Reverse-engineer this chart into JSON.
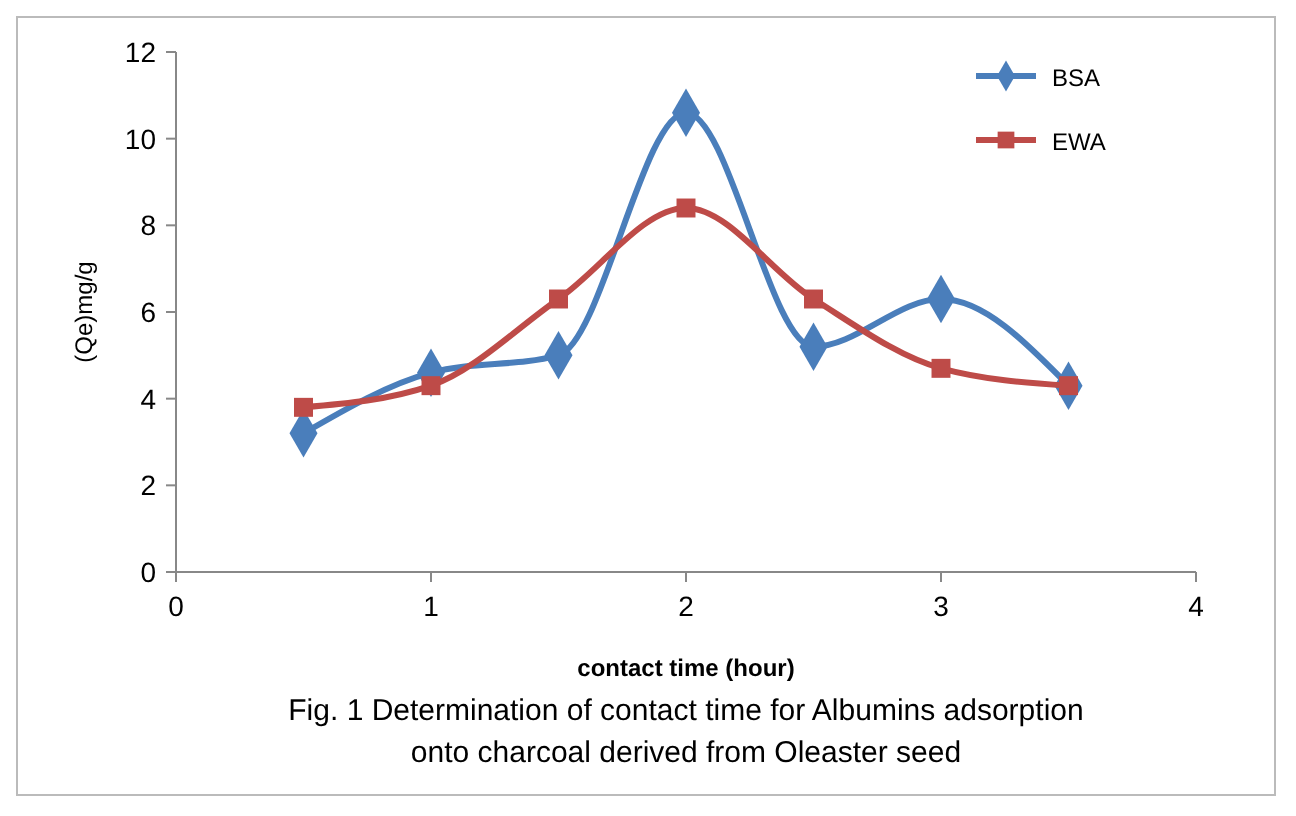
{
  "chart_data": {
    "type": "line",
    "xlabel": "contact time (hour)",
    "ylabel": "(Qe)mg/g",
    "x": [
      0.5,
      1,
      1.5,
      2,
      2.5,
      3,
      3.5
    ],
    "series": [
      {
        "name": "BSA",
        "color": "#4a7ebb",
        "marker": "diamond",
        "values": [
          3.2,
          4.6,
          5.0,
          10.6,
          5.2,
          6.3,
          4.3
        ]
      },
      {
        "name": "EWA",
        "color": "#be4b48",
        "marker": "square",
        "values": [
          3.8,
          4.3,
          6.3,
          8.4,
          6.3,
          4.7,
          4.3
        ]
      }
    ],
    "xlim": [
      0,
      4
    ],
    "xticks": [
      0,
      1,
      2,
      3,
      4
    ],
    "ylim": [
      0,
      12
    ],
    "yticks": [
      0,
      2,
      4,
      6,
      8,
      10,
      12
    ],
    "legend": "top right",
    "grid": false,
    "line_style": "solid",
    "annotations": [
      "Fig. 1 Determination of contact time for Albumins adsorption onto charcoal derived from Oleaster  seed"
    ]
  }
}
